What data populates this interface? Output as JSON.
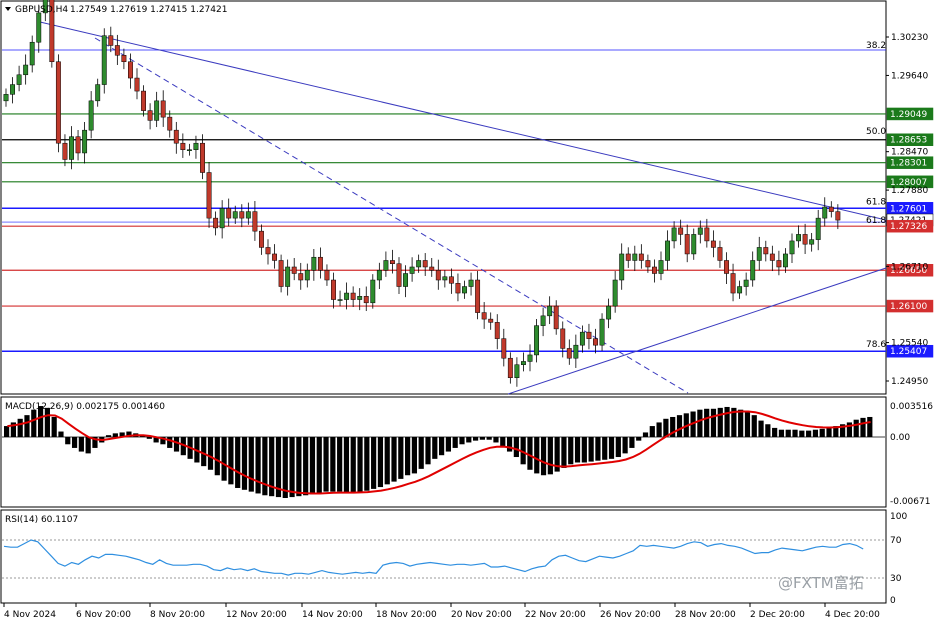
{
  "header": {
    "symbol_tf": "GBPUSD,H4",
    "ohlc": "1.27549 1.27619 1.27415 1.27421"
  },
  "macd": {
    "label": "MACD(12,26,9) 0.002175 0.001460",
    "ticks": [
      "0.003516",
      "0.00",
      "-0.00671"
    ]
  },
  "rsi": {
    "label": "RSI(14) 60.1107",
    "ticks": [
      "100",
      "70",
      "30",
      "0"
    ]
  },
  "watermark": "@FXTM富拓",
  "colors": {
    "bull": "#2e8b2e",
    "bear": "#c0392b",
    "level_red": "#d32f2f",
    "level_green": "#1b7a1b",
    "fib_blue": "#1a1aff",
    "trend": "#3b3bbf",
    "macd_signal": "#e00000",
    "rsi_line": "#2f8fe0",
    "tag_green": "#1b7a1b",
    "tag_blue": "#1a1aff",
    "tag_red": "#d32f2f"
  },
  "chart_data": {
    "type": "candlestick",
    "price_ticks": [
      "1.30230",
      "1.29640",
      "1.28470",
      "1.27880",
      "1.26710",
      "1.25540",
      "1.24950"
    ],
    "fib_labels": [
      "38.2",
      "50.0",
      "61.8",
      "61.8",
      "78.6"
    ],
    "levels": [
      {
        "price": "1.29049",
        "color": "green"
      },
      {
        "price": "1.28653",
        "color": "black"
      },
      {
        "price": "1.28301",
        "color": "green"
      },
      {
        "price": "1.28007",
        "color": "green"
      },
      {
        "price": "1.27601",
        "color": "blue"
      },
      {
        "price": "1.27421",
        "color": "white"
      },
      {
        "price": "1.27326",
        "color": "red"
      },
      {
        "price": "1.26650",
        "color": "red"
      },
      {
        "price": "1.26100",
        "color": "red"
      },
      {
        "price": "1.25407",
        "color": "blue"
      }
    ],
    "x_labels": [
      "4 Nov 2024",
      "6 Nov 20:00",
      "8 Nov 20:00",
      "12 Nov 20:00",
      "14 Nov 20:00",
      "18 Nov 20:00",
      "20 Nov 20:00",
      "22 Nov 20:00",
      "26 Nov 20:00",
      "28 Nov 20:00",
      "2 Dec 20:00",
      "4 Dec 20:00"
    ],
    "closes": [
      1.2935,
      1.295,
      1.2965,
      1.298,
      1.3015,
      1.306,
      1.3085,
      1.2985,
      1.286,
      1.2835,
      1.287,
      1.2845,
      1.288,
      1.2925,
      1.295,
      1.3025,
      1.301,
      1.2995,
      1.2985,
      1.296,
      1.294,
      1.291,
      1.2895,
      1.2925,
      1.29,
      1.288,
      1.286,
      1.285,
      1.285,
      1.286,
      1.2815,
      1.2745,
      1.273,
      1.276,
      1.2745,
      1.2755,
      1.2745,
      1.2755,
      1.2725,
      1.27,
      1.269,
      1.268,
      1.264,
      1.267,
      1.266,
      1.265,
      1.2665,
      1.2685,
      1.2665,
      1.265,
      1.262,
      1.262,
      1.263,
      1.262,
      1.2625,
      1.2615,
      1.265,
      1.2665,
      1.268,
      1.2675,
      1.264,
      1.266,
      1.267,
      1.268,
      1.267,
      1.2665,
      1.265,
      1.2655,
      1.2645,
      1.263,
      1.264,
      1.265,
      1.26,
      1.259,
      1.2585,
      1.256,
      1.253,
      1.25,
      1.252,
      1.2525,
      1.2535,
      1.258,
      1.2595,
      1.261,
      1.2575,
      1.2545,
      1.253,
      1.255,
      1.257,
      1.256,
      1.255,
      1.259,
      1.261,
      1.265,
      1.269,
      1.268,
      1.269,
      1.268,
      1.267,
      1.266,
      1.268,
      1.271,
      1.273,
      1.272,
      1.269,
      1.272,
      1.273,
      1.271,
      1.27,
      1.268,
      1.266,
      1.263,
      1.264,
      1.265,
      1.268,
      1.27,
      1.269,
      1.268,
      1.267,
      1.269,
      1.271,
      1.272,
      1.2705,
      1.2712,
      1.2745,
      1.2762,
      1.2755,
      1.2742
    ],
    "macd_hist": [
      0.0012,
      0.0016,
      0.002,
      0.0024,
      0.003,
      0.0034,
      0.0032,
      0.0022,
      0.0006,
      -0.0008,
      -0.0012,
      -0.0016,
      -0.0018,
      -0.0012,
      -0.0006,
      0.0002,
      0.0004,
      0.0005,
      0.0006,
      0.0004,
      0.0002,
      -0.0002,
      -0.0006,
      -0.0008,
      -0.0012,
      -0.0016,
      -0.002,
      -0.0024,
      -0.0028,
      -0.0032,
      -0.0036,
      -0.0042,
      -0.0048,
      -0.0052,
      -0.0056,
      -0.0058,
      -0.006,
      -0.0062,
      -0.0064,
      -0.0065,
      -0.0066,
      -0.0067,
      -0.0066,
      -0.0065,
      -0.0064,
      -0.0063,
      -0.0062,
      -0.006,
      -0.006,
      -0.006,
      -0.0061,
      -0.0061,
      -0.006,
      -0.0059,
      -0.0057,
      -0.0055,
      -0.0052,
      -0.0049,
      -0.0046,
      -0.0042,
      -0.004,
      -0.0035,
      -0.003,
      -0.0024,
      -0.002,
      -0.0016,
      -0.0012,
      -0.0008,
      -0.0006,
      -0.0004,
      -0.0003,
      -0.0003,
      -0.0006,
      -0.001,
      -0.0016,
      -0.0022,
      -0.003,
      -0.0036,
      -0.004,
      -0.0042,
      -0.0041,
      -0.0038,
      -0.0034,
      -0.003,
      -0.0028,
      -0.0028,
      -0.0027,
      -0.0026,
      -0.0025,
      -0.0024,
      -0.0022,
      -0.0018,
      -0.0012,
      -0.0004,
      0.0005,
      0.0012,
      0.0016,
      0.002,
      0.0022,
      0.0024,
      0.0026,
      0.0028,
      0.003,
      0.0031,
      0.0031,
      0.0032,
      0.0033,
      0.0032,
      0.003,
      0.0028,
      0.0024,
      0.0018,
      0.0014,
      0.001,
      0.0008,
      0.0008,
      0.0008,
      0.0007,
      0.0007,
      0.0008,
      0.0009,
      0.001,
      0.0012,
      0.0014,
      0.0016,
      0.0019,
      0.0021,
      0.0022
    ],
    "rsi": [
      63,
      62,
      62,
      66,
      70,
      68,
      60,
      52,
      44,
      41,
      45,
      43,
      48,
      52,
      50,
      54,
      54,
      53,
      52,
      50,
      48,
      45,
      43,
      48,
      44,
      42,
      42,
      42,
      43,
      43,
      41,
      37,
      36,
      39,
      37,
      38,
      36,
      38,
      35,
      34,
      33,
      33,
      31,
      33,
      33,
      32,
      34,
      36,
      34,
      33,
      32,
      33,
      34,
      33,
      34,
      33,
      42,
      44,
      45,
      44,
      41,
      43,
      44,
      45,
      44,
      43,
      42,
      43,
      43,
      42,
      43,
      44,
      40,
      40,
      41,
      39,
      37,
      35,
      38,
      40,
      41,
      48,
      52,
      53,
      50,
      47,
      46,
      49,
      52,
      51,
      50,
      52,
      55,
      58,
      64,
      63,
      64,
      63,
      62,
      61,
      63,
      66,
      68,
      67,
      63,
      65,
      66,
      64,
      63,
      61,
      58,
      55,
      56,
      56,
      59,
      61,
      60,
      59,
      58,
      60,
      62,
      63,
      62,
      62,
      65,
      66,
      64,
      60
    ],
    "rsi_ylim": [
      0,
      100
    ]
  }
}
